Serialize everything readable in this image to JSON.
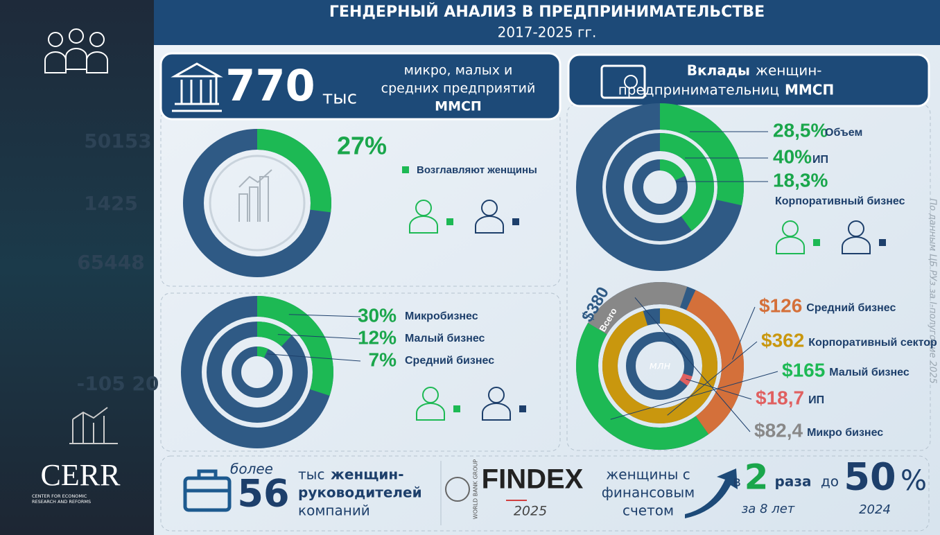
{
  "header": {
    "title": "ГЕНДЕРНЫЙ АНАЛИЗ В ПРЕДПРИНИМАТЕЛЬСТВЕ",
    "period": "2017-2025 гг."
  },
  "sidebar": {
    "background_numbers": [
      "50153",
      "1425",
      "65448",
      "-105 20"
    ],
    "logo": "CERR",
    "logo_subtitle": [
      "CENTER FOR ECONOMIC",
      "RESEARCH AND REFORMS"
    ]
  },
  "source_note": "По данным ЦБ РУз за I-полугодие 2025",
  "smes": {
    "count": 770,
    "unit": "тыс",
    "description": [
      "микро, малых и",
      "средних предприятий",
      "ММСП"
    ]
  },
  "women_led": {
    "type": "pie",
    "values": [
      27
    ],
    "value_labels": [
      "27%"
    ],
    "label": "Возглавляют женщины",
    "colors": [
      "#1db954",
      "#2f5a85"
    ]
  },
  "business_size": {
    "type": "pie",
    "categories": [
      "Микробизнес",
      "Малый бизнес",
      "Средний бизнес"
    ],
    "values": [
      30,
      12,
      7
    ],
    "value_labels": [
      "30%",
      "12%",
      "7%"
    ],
    "colors": [
      "#1db954",
      "#2f5a85"
    ]
  },
  "deposits": {
    "title": [
      "Вклады",
      "женщин-",
      "предпринимательниц",
      "ММСП"
    ]
  },
  "deposit_shares": {
    "type": "pie",
    "categories": [
      "Объем",
      "ИП",
      "Корпоративный бизнес"
    ],
    "values": [
      28.5,
      40,
      18.3
    ],
    "value_labels": [
      "28,5%",
      "40%",
      "18,3%"
    ],
    "colors": [
      "#1db954",
      "#2f5a85"
    ]
  },
  "deposit_amounts": {
    "type": "pie",
    "total": 380,
    "total_label": "$380",
    "total_caption": "Всего",
    "unit": "млн",
    "categories": [
      "Средний бизнес",
      "Корпоративный сектор",
      "Малый бизнес",
      "ИП",
      "Микро бизнес"
    ],
    "values": [
      126,
      362,
      165,
      18.7,
      82.4
    ],
    "value_labels": [
      "$126",
      "$362",
      "$165",
      "$18,7",
      "$82,4"
    ],
    "colors": [
      "#d4703a",
      "#c9970e",
      "#1db954",
      "#e06060",
      "#888888"
    ]
  },
  "women_managers": {
    "prefix": "более",
    "count": 56,
    "text": [
      "тыс",
      "женщин-",
      "руководителей",
      "компаний"
    ]
  },
  "findex": {
    "org": "WORLD BANK GROUP",
    "name": "FINDEX",
    "year": "2025",
    "text": [
      "женщины с",
      "финансовым",
      "счетом"
    ],
    "growth_prefix": "в",
    "growth": 2,
    "growth_unit": "раза",
    "growth_period": "за 8 лет",
    "target_prefix": "до",
    "share": 50,
    "share_unit": "%",
    "share_year": "2024"
  }
}
